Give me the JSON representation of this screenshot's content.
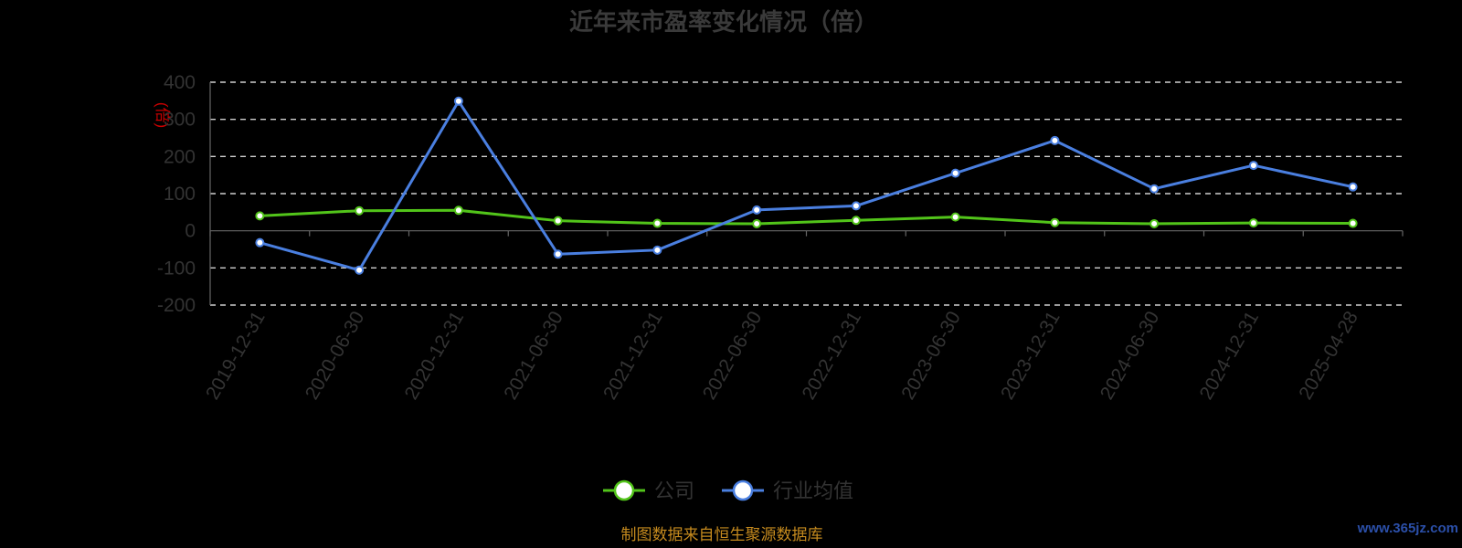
{
  "chart_data": {
    "type": "line",
    "title": "近年来市盈率变化情况（倍）",
    "ylabel": "(倍)",
    "ylim": [
      -200,
      400
    ],
    "yticks": [
      "400",
      "300",
      "200",
      "100",
      "0",
      "-100",
      "-200"
    ],
    "x": [
      "2019-12-31",
      "2020-06-30",
      "2020-12-31",
      "2021-06-30",
      "2021-12-31",
      "2022-06-30",
      "2022-12-31",
      "2023-06-30",
      "2023-12-31",
      "2024-06-30",
      "2024-12-31",
      "2025-04-28"
    ],
    "series": [
      {
        "name": "公司",
        "color": "#52c41a",
        "values": [
          40,
          54,
          55,
          27,
          20,
          19,
          28,
          37,
          22,
          19,
          21,
          20
        ]
      },
      {
        "name": "行业均值",
        "color": "#4a7fe0",
        "values": [
          -32,
          -106,
          349,
          -63,
          -52,
          56,
          67,
          155,
          243,
          113,
          176,
          118
        ]
      }
    ],
    "grid": true,
    "legend": "bottom-center"
  },
  "footer": {
    "source": "制图数据来自恒生聚源数据库",
    "watermark": "www.365jz.com"
  }
}
